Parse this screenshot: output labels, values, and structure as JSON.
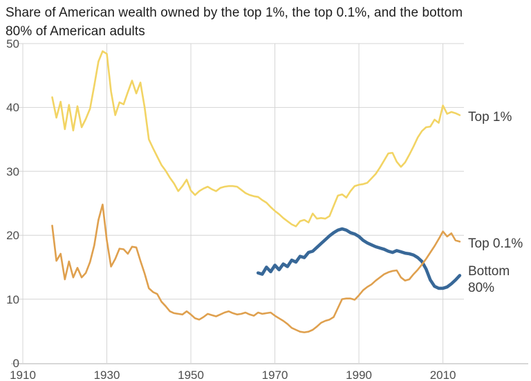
{
  "title": {
    "line1": "Share of American wealth owned by the top 1%, the top 0.1%, and the bottom",
    "line2": "80% of American adults"
  },
  "colors": {
    "background": "#ffffff",
    "title_text": "#1d1d1d",
    "tick_text": "#4d4d4d",
    "series_label_text": "#3d3d3d",
    "gridline": "#d4d4d4",
    "axis_line": "#c0c0c0",
    "top1_line": "#f2d464",
    "top01_line": "#dfa04e",
    "bottom80_line": "#386898"
  },
  "chart_data": {
    "type": "line",
    "title": "Share of American wealth owned by the top 1%, the top 0.1%, and the bottom 80% of American adults",
    "xlabel": "",
    "ylabel": "",
    "x_axis": {
      "min": 1910,
      "max": 2015,
      "ticks": [
        1910,
        1930,
        1950,
        1970,
        1990,
        2010
      ],
      "vertical_gridlines": [
        1930,
        1950,
        1970,
        1990,
        2010
      ]
    },
    "y_axis": {
      "min": 0,
      "max": 50,
      "ticks": [
        0,
        10,
        20,
        30,
        40,
        50
      ]
    },
    "grid": true,
    "legend_position": "right-of-line-end",
    "series": [
      {
        "key": "top1",
        "name": "Top 1%",
        "color": "#f2d464",
        "stroke_width": 2.6,
        "points": [
          [
            1917,
            41.6
          ],
          [
            1918,
            38.4
          ],
          [
            1919,
            40.9
          ],
          [
            1920,
            36.6
          ],
          [
            1921,
            40.4
          ],
          [
            1922,
            36.4
          ],
          [
            1923,
            40.2
          ],
          [
            1924,
            36.9
          ],
          [
            1925,
            38.2
          ],
          [
            1926,
            39.8
          ],
          [
            1927,
            43.4
          ],
          [
            1928,
            47.2
          ],
          [
            1929,
            48.8
          ],
          [
            1930,
            48.4
          ],
          [
            1931,
            42.5
          ],
          [
            1932,
            38.8
          ],
          [
            1933,
            40.8
          ],
          [
            1934,
            40.5
          ],
          [
            1935,
            42.4
          ],
          [
            1936,
            44.2
          ],
          [
            1937,
            42.2
          ],
          [
            1938,
            43.9
          ],
          [
            1939,
            40.0
          ],
          [
            1940,
            35.0
          ],
          [
            1941,
            33.6
          ],
          [
            1942,
            32.3
          ],
          [
            1943,
            31.0
          ],
          [
            1944,
            30.1
          ],
          [
            1945,
            29.0
          ],
          [
            1946,
            28.1
          ],
          [
            1947,
            26.9
          ],
          [
            1948,
            27.7
          ],
          [
            1949,
            28.7
          ],
          [
            1950,
            27.0
          ],
          [
            1951,
            26.3
          ],
          [
            1952,
            26.9
          ],
          [
            1953,
            27.3
          ],
          [
            1954,
            27.6
          ],
          [
            1955,
            27.2
          ],
          [
            1956,
            26.9
          ],
          [
            1957,
            27.4
          ],
          [
            1958,
            27.6
          ],
          [
            1959,
            27.7
          ],
          [
            1960,
            27.7
          ],
          [
            1961,
            27.6
          ],
          [
            1962,
            27.1
          ],
          [
            1963,
            26.6
          ],
          [
            1964,
            26.3
          ],
          [
            1965,
            26.1
          ],
          [
            1966,
            26.0
          ],
          [
            1967,
            25.5
          ],
          [
            1968,
            25.1
          ],
          [
            1969,
            24.4
          ],
          [
            1970,
            23.8
          ],
          [
            1971,
            23.3
          ],
          [
            1972,
            22.7
          ],
          [
            1973,
            22.2
          ],
          [
            1974,
            21.7
          ],
          [
            1975,
            21.4
          ],
          [
            1976,
            22.2
          ],
          [
            1977,
            22.4
          ],
          [
            1978,
            22.0
          ],
          [
            1979,
            23.4
          ],
          [
            1980,
            22.6
          ],
          [
            1981,
            22.7
          ],
          [
            1982,
            22.6
          ],
          [
            1983,
            23.0
          ],
          [
            1984,
            24.6
          ],
          [
            1985,
            26.2
          ],
          [
            1986,
            26.4
          ],
          [
            1987,
            25.9
          ],
          [
            1988,
            26.9
          ],
          [
            1989,
            27.7
          ],
          [
            1990,
            27.9
          ],
          [
            1991,
            28.0
          ],
          [
            1992,
            28.2
          ],
          [
            1993,
            28.9
          ],
          [
            1994,
            29.6
          ],
          [
            1995,
            30.6
          ],
          [
            1996,
            31.7
          ],
          [
            1997,
            32.8
          ],
          [
            1998,
            32.9
          ],
          [
            1999,
            31.5
          ],
          [
            2000,
            30.7
          ],
          [
            2001,
            31.4
          ],
          [
            2002,
            32.6
          ],
          [
            2003,
            33.9
          ],
          [
            2004,
            35.3
          ],
          [
            2005,
            36.3
          ],
          [
            2006,
            36.9
          ],
          [
            2007,
            37.0
          ],
          [
            2008,
            38.1
          ],
          [
            2009,
            37.6
          ],
          [
            2010,
            40.3
          ],
          [
            2011,
            39.0
          ],
          [
            2012,
            39.3
          ],
          [
            2013,
            39.1
          ],
          [
            2014,
            38.8
          ]
        ]
      },
      {
        "key": "bottom80",
        "name": "Bottom 80%",
        "color": "#386898",
        "stroke_width": 4.6,
        "points": [
          [
            1966,
            14.1
          ],
          [
            1967,
            13.9
          ],
          [
            1968,
            15.0
          ],
          [
            1969,
            14.3
          ],
          [
            1970,
            15.3
          ],
          [
            1971,
            14.6
          ],
          [
            1972,
            15.5
          ],
          [
            1973,
            15.1
          ],
          [
            1974,
            16.1
          ],
          [
            1975,
            15.8
          ],
          [
            1976,
            16.7
          ],
          [
            1977,
            16.5
          ],
          [
            1978,
            17.3
          ],
          [
            1979,
            17.5
          ],
          [
            1980,
            18.1
          ],
          [
            1981,
            18.7
          ],
          [
            1982,
            19.3
          ],
          [
            1983,
            19.9
          ],
          [
            1984,
            20.4
          ],
          [
            1985,
            20.8
          ],
          [
            1986,
            21.0
          ],
          [
            1987,
            20.8
          ],
          [
            1988,
            20.4
          ],
          [
            1989,
            20.2
          ],
          [
            1990,
            19.8
          ],
          [
            1991,
            19.2
          ],
          [
            1992,
            18.8
          ],
          [
            1993,
            18.5
          ],
          [
            1994,
            18.2
          ],
          [
            1995,
            18.0
          ],
          [
            1996,
            17.8
          ],
          [
            1997,
            17.5
          ],
          [
            1998,
            17.3
          ],
          [
            1999,
            17.6
          ],
          [
            2000,
            17.4
          ],
          [
            2001,
            17.2
          ],
          [
            2002,
            17.1
          ],
          [
            2003,
            16.9
          ],
          [
            2004,
            16.5
          ],
          [
            2005,
            15.9
          ],
          [
            2006,
            14.7
          ],
          [
            2007,
            13.0
          ],
          [
            2008,
            12.0
          ],
          [
            2009,
            11.7
          ],
          [
            2010,
            11.7
          ],
          [
            2011,
            11.9
          ],
          [
            2012,
            12.4
          ],
          [
            2013,
            13.0
          ],
          [
            2014,
            13.7
          ]
        ]
      },
      {
        "key": "top01",
        "name": "Top 0.1%",
        "color": "#dfa04e",
        "stroke_width": 2.6,
        "points": [
          [
            1917,
            21.5
          ],
          [
            1918,
            16.0
          ],
          [
            1919,
            17.1
          ],
          [
            1920,
            13.1
          ],
          [
            1921,
            15.9
          ],
          [
            1922,
            13.4
          ],
          [
            1923,
            14.9
          ],
          [
            1924,
            13.4
          ],
          [
            1925,
            14.1
          ],
          [
            1926,
            15.8
          ],
          [
            1927,
            18.4
          ],
          [
            1928,
            22.4
          ],
          [
            1929,
            24.8
          ],
          [
            1930,
            19.2
          ],
          [
            1931,
            15.1
          ],
          [
            1932,
            16.3
          ],
          [
            1933,
            17.9
          ],
          [
            1934,
            17.8
          ],
          [
            1935,
            17.1
          ],
          [
            1936,
            18.2
          ],
          [
            1937,
            18.1
          ],
          [
            1938,
            16.0
          ],
          [
            1939,
            14.0
          ],
          [
            1940,
            11.7
          ],
          [
            1941,
            11.1
          ],
          [
            1942,
            10.8
          ],
          [
            1943,
            9.6
          ],
          [
            1944,
            8.9
          ],
          [
            1945,
            8.1
          ],
          [
            1946,
            7.8
          ],
          [
            1947,
            7.7
          ],
          [
            1948,
            7.6
          ],
          [
            1949,
            8.1
          ],
          [
            1950,
            7.6
          ],
          [
            1951,
            7.0
          ],
          [
            1952,
            6.8
          ],
          [
            1953,
            7.2
          ],
          [
            1954,
            7.7
          ],
          [
            1955,
            7.5
          ],
          [
            1956,
            7.3
          ],
          [
            1957,
            7.6
          ],
          [
            1958,
            7.9
          ],
          [
            1959,
            8.1
          ],
          [
            1960,
            7.8
          ],
          [
            1961,
            7.6
          ],
          [
            1962,
            7.7
          ],
          [
            1963,
            7.9
          ],
          [
            1964,
            7.6
          ],
          [
            1965,
            7.4
          ],
          [
            1966,
            7.9
          ],
          [
            1967,
            7.7
          ],
          [
            1968,
            7.8
          ],
          [
            1969,
            7.9
          ],
          [
            1970,
            7.4
          ],
          [
            1971,
            7.0
          ],
          [
            1972,
            6.6
          ],
          [
            1973,
            6.1
          ],
          [
            1974,
            5.5
          ],
          [
            1975,
            5.2
          ],
          [
            1976,
            4.9
          ],
          [
            1977,
            4.8
          ],
          [
            1978,
            4.9
          ],
          [
            1979,
            5.2
          ],
          [
            1980,
            5.7
          ],
          [
            1981,
            6.3
          ],
          [
            1982,
            6.6
          ],
          [
            1983,
            6.8
          ],
          [
            1984,
            7.2
          ],
          [
            1985,
            8.6
          ],
          [
            1986,
            10.0
          ],
          [
            1987,
            10.1
          ],
          [
            1988,
            10.1
          ],
          [
            1989,
            9.9
          ],
          [
            1990,
            10.6
          ],
          [
            1991,
            11.4
          ],
          [
            1992,
            11.9
          ],
          [
            1993,
            12.3
          ],
          [
            1994,
            12.9
          ],
          [
            1995,
            13.4
          ],
          [
            1996,
            13.9
          ],
          [
            1997,
            14.2
          ],
          [
            1998,
            14.4
          ],
          [
            1999,
            14.5
          ],
          [
            2000,
            13.4
          ],
          [
            2001,
            12.9
          ],
          [
            2002,
            13.1
          ],
          [
            2003,
            13.9
          ],
          [
            2004,
            14.6
          ],
          [
            2005,
            15.4
          ],
          [
            2006,
            16.3
          ],
          [
            2007,
            17.3
          ],
          [
            2008,
            18.3
          ],
          [
            2009,
            19.4
          ],
          [
            2010,
            20.6
          ],
          [
            2011,
            19.8
          ],
          [
            2012,
            20.3
          ],
          [
            2013,
            19.2
          ],
          [
            2014,
            19.0
          ]
        ]
      }
    ]
  },
  "series_labels": {
    "top1": "Top 1%",
    "top01": "Top 0.1%",
    "bottom80": "Bottom 80%"
  }
}
